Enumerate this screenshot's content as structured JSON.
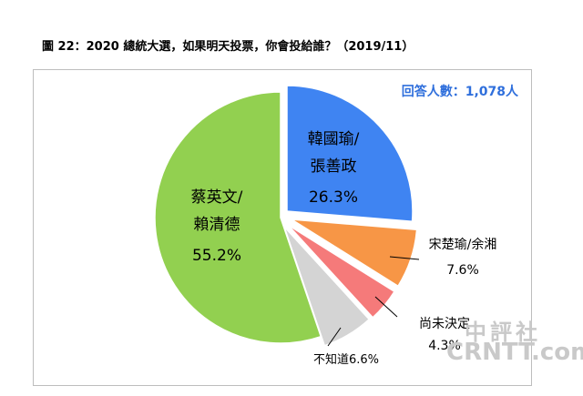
{
  "title": "圖 22：2020 總統大選，如果明天投票，你會投給誰？（2019/11）",
  "respondents": "回答人數：1,078人",
  "watermark": {
    "chinese": "中評社",
    "latin": "CRNTT.com"
  },
  "chart_data": {
    "type": "pie",
    "title": "圖 22：2020 總統大選，如果明天投票，你會投給誰？（2019/11）",
    "slices": [
      {
        "label": "韓國瑜/張善政",
        "line1": "韓國瑜/",
        "line2": "張善政",
        "value": 26.3,
        "display": "26.3%",
        "color": "#3f84f2"
      },
      {
        "label": "宋楚瑜/余湘",
        "line1": "宋楚瑜/余湘",
        "line2": "",
        "value": 7.6,
        "display": "7.6%",
        "color": "#f79646"
      },
      {
        "label": "尚未決定",
        "line1": "尚未決定",
        "line2": "",
        "value": 4.3,
        "display": "4.3%",
        "color": "#f57a7a"
      },
      {
        "label": "不知道",
        "line1": "不知道",
        "line2": "",
        "value": 6.6,
        "display": "6.6%",
        "color": "#d4d4d4"
      },
      {
        "label": "蔡英文/賴清德",
        "line1": "蔡英文/",
        "line2": "賴清德",
        "value": 55.2,
        "display": "55.2%",
        "color": "#92d050"
      }
    ]
  }
}
